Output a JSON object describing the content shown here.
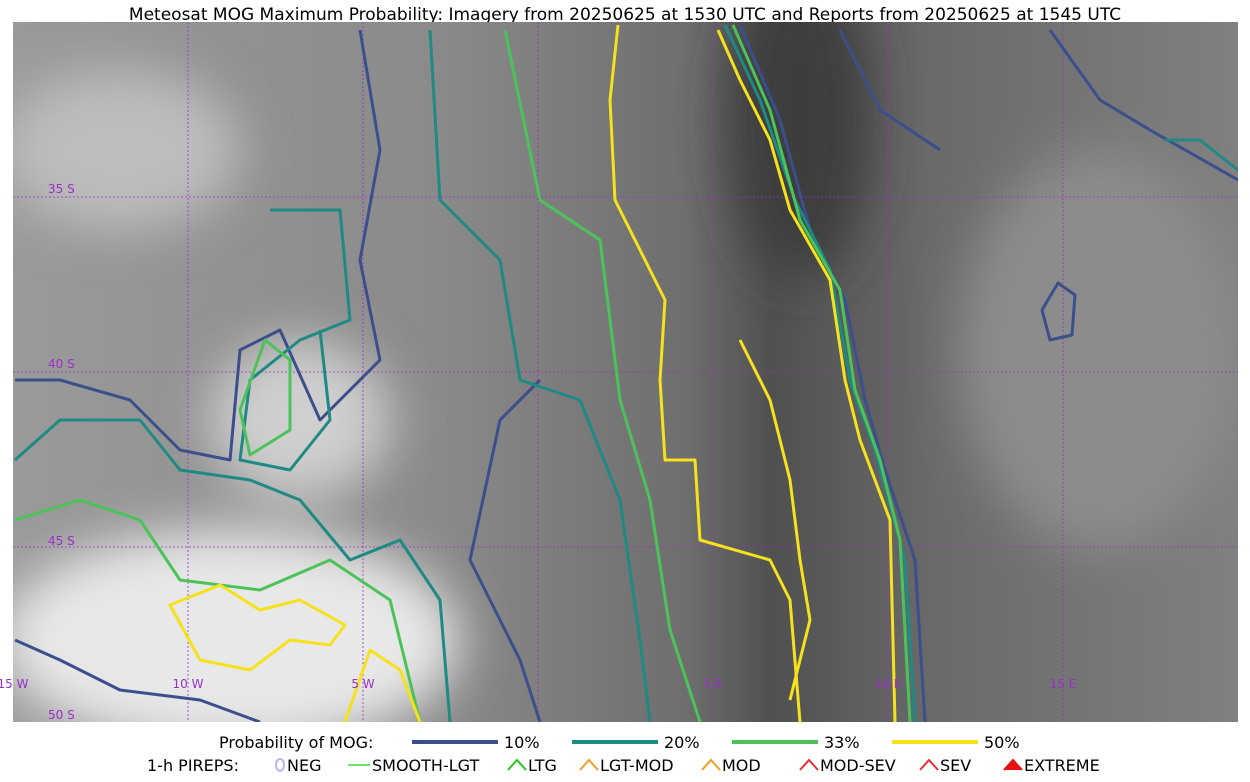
{
  "header": {
    "title": "Meteosat MOG Maximum Probability: Imagery from 20250625 at 1530 UTC and Reports from 20250625 at 1545 UTC"
  },
  "map": {
    "lat_labels": [
      "35 S",
      "40 S",
      "45 S",
      "50 S"
    ],
    "lon_labels": [
      "15 W",
      "10 W",
      "5 W",
      "5 E",
      "10 E",
      "15 E"
    ]
  },
  "legend": {
    "probability": {
      "label": "Probability of MOG:",
      "items": [
        {
          "name": "10%",
          "color": "#3a4f8c"
        },
        {
          "name": "20%",
          "color": "#1f8a84"
        },
        {
          "name": "33%",
          "color": "#4cc35a"
        },
        {
          "name": "50%",
          "color": "#f5e11c"
        }
      ]
    },
    "pireps": {
      "label": "1-h PIREPS:",
      "items": [
        {
          "name": "NEG",
          "color": "#b9b3ef"
        },
        {
          "name": "SMOOTH-LGT",
          "color": "#3dd83d"
        },
        {
          "name": "LTG",
          "color": "#22cc22"
        },
        {
          "name": "LGT-MOD",
          "color": "#f0a020"
        },
        {
          "name": "MOD",
          "color": "#f0a020"
        },
        {
          "name": "MOD-SEV",
          "color": "#e83030"
        },
        {
          "name": "SEV",
          "color": "#e83030"
        },
        {
          "name": "EXTREME",
          "color": "#e81010"
        }
      ]
    }
  }
}
